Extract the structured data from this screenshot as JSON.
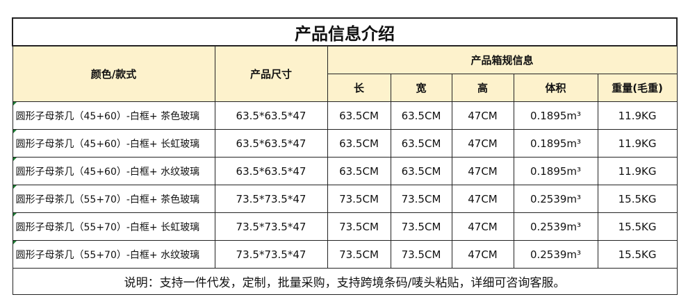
{
  "table": {
    "title": "产品信息介绍",
    "header": {
      "style": "颜色/款式",
      "size": "产品尺寸",
      "box_info": "产品箱规信息",
      "sub": [
        "长",
        "宽",
        "高",
        "体积",
        "重量(毛重)"
      ]
    },
    "rows": [
      [
        "圆形子母茶几（45+60）-白框+ 茶色玻璃",
        "63.5*63.5*47",
        "63.5CM",
        "63.5CM",
        "47CM",
        "0.1895m³",
        "11.9KG"
      ],
      [
        "圆形子母茶几（45+60）-白框+ 长虹玻璃",
        "63.5*63.5*47",
        "63.5CM",
        "63.5CM",
        "47CM",
        "0.1895m³",
        "11.9KG"
      ],
      [
        "圆形子母茶几（45+60）-白框+ 水纹玻璃",
        "63.5*63.5*47",
        "63.5CM",
        "63.5CM",
        "47CM",
        "0.1895m³",
        "11.9KG"
      ],
      [
        "圆形子母茶几（55+70）-白框+ 茶色玻璃",
        "73.5*73.5*47",
        "73.5CM",
        "73.5CM",
        "47CM",
        "0.2539m³",
        "15.5KG"
      ],
      [
        "圆形子母茶几（55+70）-白框+ 长虹玻璃",
        "73.5*73.5*47",
        "73.5CM",
        "73.5CM",
        "47CM",
        "0.2539m³",
        "15.5KG"
      ],
      [
        "圆形子母茶几（55+70）-白框+ 水纹玻璃",
        "73.5*73.5*47",
        "73.5CM",
        "73.5CM",
        "47CM",
        "0.2539m³",
        "15.5KG"
      ]
    ],
    "note": "说明：支持一件代发，定制，批量采购，支持跨境条码/唛头粘贴，详细可咨询客服。"
  }
}
